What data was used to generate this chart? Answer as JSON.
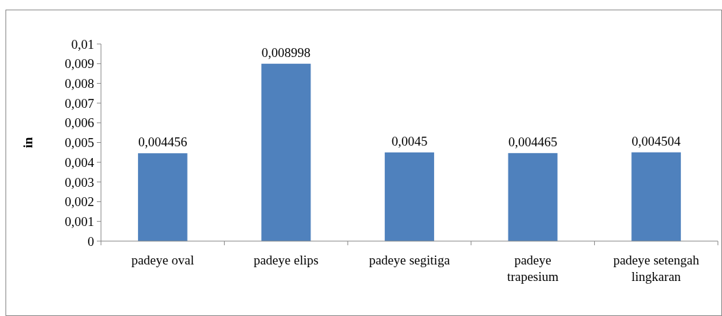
{
  "chart_data": {
    "type": "bar",
    "ylabel": "in",
    "categories": [
      "padeye oval",
      "padeye elips",
      "padeye segitiga",
      "padeye trapesium",
      "padeye setengah lingkaran"
    ],
    "values": [
      0.004456,
      0.008998,
      0.0045,
      0.004465,
      0.004504
    ],
    "value_labels": [
      "0,004456",
      "0,008998",
      "0,0045",
      "0,004465",
      "0,004504"
    ],
    "color": "#4f81bd",
    "ylim": [
      0,
      0.01
    ],
    "yticks": [
      0,
      {
        "value": 0.001,
        "label": "0,001"
      },
      {
        "value": 0.002,
        "label": "0,002"
      },
      {
        "value": 0.003,
        "label": "0,003"
      },
      {
        "value": 0.004,
        "label": "0,004"
      },
      {
        "value": 0.005,
        "label": "0,005"
      },
      {
        "value": 0.006,
        "label": "0,006"
      },
      {
        "value": 0.007,
        "label": "0,007"
      },
      {
        "value": 0.008,
        "label": "0,008"
      },
      {
        "value": 0.009,
        "label": "0,009"
      },
      {
        "value": 0.01,
        "label": "0,01"
      }
    ],
    "grid": false
  }
}
